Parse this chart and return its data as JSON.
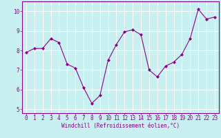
{
  "x": [
    0,
    1,
    2,
    3,
    4,
    5,
    6,
    7,
    8,
    9,
    10,
    11,
    12,
    13,
    14,
    15,
    16,
    17,
    18,
    19,
    20,
    21,
    22,
    23
  ],
  "y": [
    7.9,
    8.1,
    8.1,
    8.6,
    8.4,
    7.3,
    7.1,
    6.1,
    5.3,
    5.7,
    7.5,
    8.3,
    8.95,
    9.05,
    8.8,
    7.0,
    6.65,
    7.2,
    7.4,
    7.8,
    8.6,
    10.1,
    9.6,
    9.7
  ],
  "line_color": "#8B008B",
  "marker": "D",
  "markersize": 2.0,
  "linewidth": 0.8,
  "bg_color": "#c8f0f0",
  "grid_color": "#ffffff",
  "xlabel": "Windchill (Refroidissement éolien,°C)",
  "xlabel_color": "#8B008B",
  "tick_color": "#8B008B",
  "spine_color": "#8B008B",
  "xlim": [
    -0.5,
    23.5
  ],
  "ylim": [
    4.8,
    10.5
  ],
  "yticks": [
    5,
    6,
    7,
    8,
    9,
    10
  ],
  "xticks": [
    0,
    1,
    2,
    3,
    4,
    5,
    6,
    7,
    8,
    9,
    10,
    11,
    12,
    13,
    14,
    15,
    16,
    17,
    18,
    19,
    20,
    21,
    22,
    23
  ],
  "tick_fontsize": 5.5,
  "xlabel_fontsize": 5.5
}
